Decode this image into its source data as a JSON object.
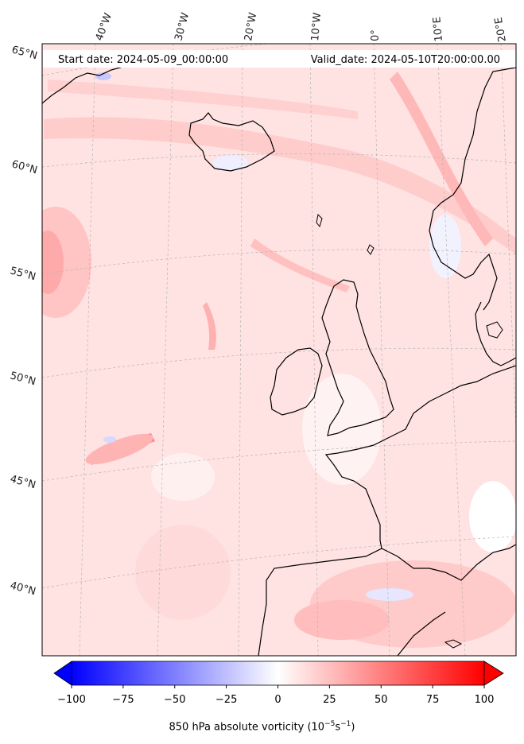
{
  "header": {
    "start_date": "Start date: 2024-05-09_00:00:00",
    "valid_date": "Valid_date: 2024-05-10T20:00:00.00"
  },
  "lon_labels": [
    "40°W",
    "30°W",
    "20°W",
    "10°W",
    "0°",
    "10°E",
    "20°E"
  ],
  "lat_labels": [
    "65°N",
    "60°N",
    "55°N",
    "50°N",
    "45°N",
    "40°N"
  ],
  "colorbar": {
    "ticks": [
      "−100",
      "−75",
      "−50",
      "−25",
      "0",
      "25",
      "50",
      "75",
      "100"
    ],
    "min": -100,
    "max": 100,
    "label_prefix": "850 hPa absolute vorticity (10",
    "label_exp1": "−5",
    "label_mid": "s",
    "label_exp2": "−1",
    "label_suffix": ")",
    "low_color": "#0000ff",
    "mid_color": "#ffffff",
    "high_color": "#ff0000"
  },
  "colors": {
    "background_field": "#ffe4e4",
    "coastline": "#000000",
    "gridline": "#b0b0b0"
  }
}
